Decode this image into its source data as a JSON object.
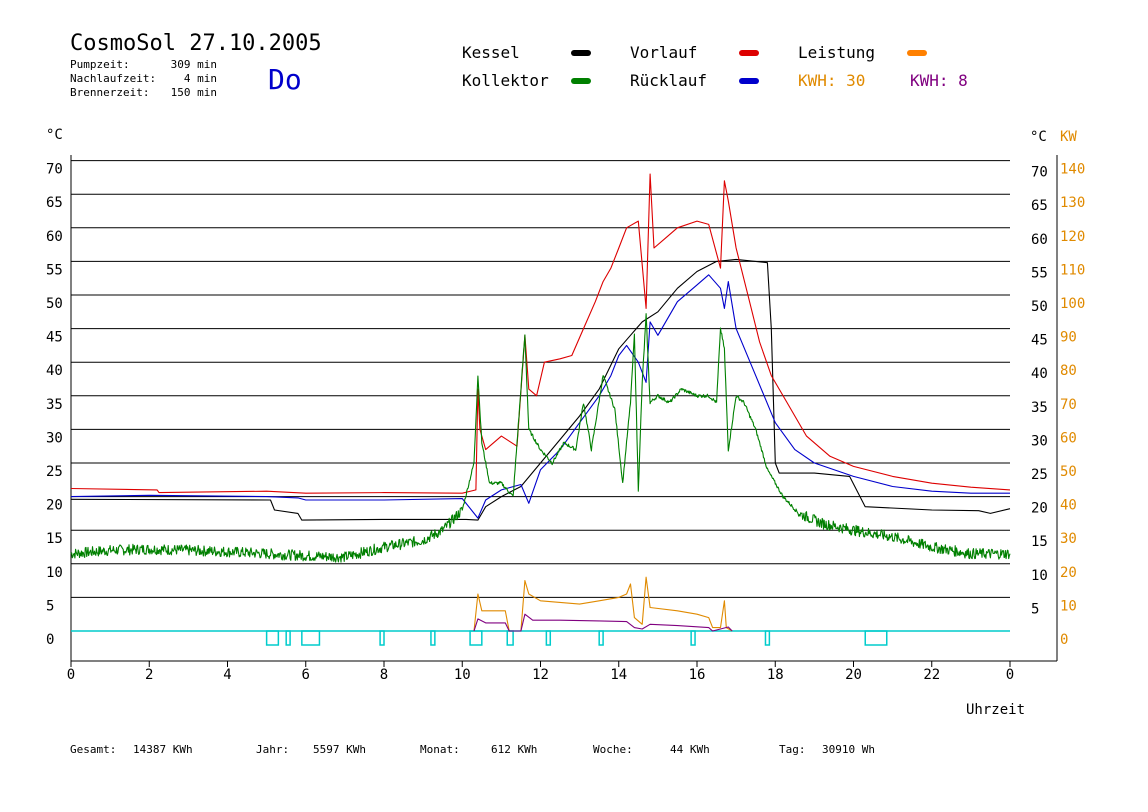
{
  "chart_data": {
    "type": "line",
    "title": "CosmoSol 27.10.2005",
    "day": "Do",
    "info": [
      {
        "label": "Pumpzeit:",
        "value": "309 min"
      },
      {
        "label": "Nachlaufzeit:",
        "value": "4 min"
      },
      {
        "label": "Brennerzeit:",
        "value": "150 min"
      }
    ],
    "legend": [
      {
        "name": "Kessel",
        "color": "#000000"
      },
      {
        "name": "Vorlauf",
        "color": "#dd0000"
      },
      {
        "name": "Leistung",
        "color": "#ff8000"
      },
      {
        "name": "Kollektor",
        "color": "#008000"
      },
      {
        "name": "Rücklauf",
        "color": "#0000cc"
      }
    ],
    "kwh_labels": [
      {
        "text": "KWH: 30",
        "color": "#e08a00"
      },
      {
        "text": "KWH: 8",
        "color": "#800080"
      }
    ],
    "xlabel": "Uhrzeit",
    "ylabel_left": "°C",
    "ylabel_right_temp": "°C",
    "ylabel_right_power": "KW",
    "xlim": [
      0,
      24
    ],
    "ylim": [
      0,
      70
    ],
    "x_ticks": [
      "0",
      "2",
      "4",
      "6",
      "8",
      "10",
      "12",
      "14",
      "16",
      "18",
      "20",
      "22",
      "0"
    ],
    "y_ticks_left": [
      "0",
      "5",
      "10",
      "15",
      "20",
      "25",
      "30",
      "35",
      "40",
      "45",
      "50",
      "55",
      "60",
      "65",
      "70"
    ],
    "y_ticks_right_temp": [
      "5",
      "10",
      "15",
      "20",
      "25",
      "30",
      "35",
      "40",
      "45",
      "50",
      "55",
      "60",
      "65",
      "70"
    ],
    "y_ticks_right_power": [
      "0",
      "10",
      "20",
      "30",
      "40",
      "50",
      "60",
      "70",
      "80",
      "90",
      "100",
      "110",
      "120",
      "130",
      "140"
    ],
    "series": [
      {
        "name": "Kessel",
        "color": "#000000",
        "points": [
          [
            0,
            19.6
          ],
          [
            5.1,
            19.5
          ],
          [
            5.2,
            18.0
          ],
          [
            5.8,
            17.5
          ],
          [
            5.9,
            16.5
          ],
          [
            8,
            16.6
          ],
          [
            10.1,
            16.6
          ],
          [
            10.4,
            16.5
          ],
          [
            10.6,
            18.5
          ],
          [
            11,
            20
          ],
          [
            11.5,
            21.5
          ],
          [
            12,
            25
          ],
          [
            12.5,
            28.5
          ],
          [
            13,
            32
          ],
          [
            13.5,
            36
          ],
          [
            14,
            42
          ],
          [
            14.3,
            44
          ],
          [
            14.6,
            46
          ],
          [
            15,
            47.5
          ],
          [
            15.5,
            51
          ],
          [
            16,
            53.5
          ],
          [
            16.5,
            55
          ],
          [
            17,
            55.3
          ],
          [
            17.5,
            55.0
          ],
          [
            17.8,
            54.8
          ],
          [
            17.9,
            45
          ],
          [
            18.0,
            25
          ],
          [
            18.1,
            23.5
          ],
          [
            19,
            23.5
          ],
          [
            19.9,
            23.0
          ],
          [
            20.3,
            18.5
          ],
          [
            22,
            18.0
          ],
          [
            23.2,
            17.9
          ],
          [
            23.5,
            17.5
          ],
          [
            24,
            18.2
          ]
        ]
      },
      {
        "name": "Vorlauf",
        "color": "#dd0000",
        "points": [
          [
            0,
            21.2
          ],
          [
            2.2,
            21.0
          ],
          [
            2.25,
            20.6
          ],
          [
            5,
            20.8
          ],
          [
            6,
            20.5
          ],
          [
            8,
            20.6
          ],
          [
            10,
            20.5
          ],
          [
            10.35,
            21
          ],
          [
            10.4,
            36
          ],
          [
            10.45,
            30
          ],
          [
            10.6,
            27
          ],
          [
            11,
            29
          ],
          [
            11.4,
            27.5
          ],
          [
            11.6,
            44
          ],
          [
            11.7,
            36
          ],
          [
            11.9,
            35
          ],
          [
            12.1,
            40
          ],
          [
            12.5,
            40.5
          ],
          [
            12.8,
            41
          ],
          [
            13.1,
            45
          ],
          [
            13.4,
            49
          ],
          [
            13.6,
            52
          ],
          [
            13.8,
            54
          ],
          [
            14.0,
            57
          ],
          [
            14.2,
            60
          ],
          [
            14.5,
            61
          ],
          [
            14.7,
            48
          ],
          [
            14.8,
            68
          ],
          [
            14.9,
            57
          ],
          [
            15.2,
            58.5
          ],
          [
            15.5,
            60
          ],
          [
            16,
            61
          ],
          [
            16.3,
            60.5
          ],
          [
            16.6,
            54
          ],
          [
            16.7,
            67
          ],
          [
            16.8,
            64
          ],
          [
            17,
            57
          ],
          [
            17.3,
            50
          ],
          [
            17.6,
            43
          ],
          [
            17.9,
            38
          ],
          [
            18.3,
            34
          ],
          [
            18.8,
            29
          ],
          [
            19.4,
            26
          ],
          [
            20,
            24.5
          ],
          [
            21,
            23.0
          ],
          [
            22,
            22.0
          ],
          [
            23,
            21.4
          ],
          [
            24,
            21.0
          ]
        ]
      },
      {
        "name": "Rücklauf",
        "color": "#0000cc",
        "points": [
          [
            0,
            20.0
          ],
          [
            2,
            20.2
          ],
          [
            5,
            20.0
          ],
          [
            5.8,
            19.8
          ],
          [
            6,
            19.5
          ],
          [
            8,
            19.5
          ],
          [
            10,
            19.7
          ],
          [
            10.4,
            16.8
          ],
          [
            10.6,
            19.5
          ],
          [
            11,
            21
          ],
          [
            11.5,
            21.8
          ],
          [
            11.7,
            19
          ],
          [
            12,
            24
          ],
          [
            12.5,
            27
          ],
          [
            13,
            31
          ],
          [
            13.5,
            35
          ],
          [
            13.8,
            38
          ],
          [
            14.0,
            41
          ],
          [
            14.2,
            42.5
          ],
          [
            14.5,
            40
          ],
          [
            14.7,
            37
          ],
          [
            14.8,
            46
          ],
          [
            15.0,
            44
          ],
          [
            15.5,
            49
          ],
          [
            16,
            51.5
          ],
          [
            16.3,
            53
          ],
          [
            16.6,
            51
          ],
          [
            16.7,
            48
          ],
          [
            16.8,
            52
          ],
          [
            17.0,
            45
          ],
          [
            17.5,
            38
          ],
          [
            18,
            31
          ],
          [
            18.5,
            27
          ],
          [
            19,
            25
          ],
          [
            20,
            23.0
          ],
          [
            21,
            21.5
          ],
          [
            22,
            20.8
          ],
          [
            23,
            20.5
          ],
          [
            24,
            20.5
          ]
        ]
      },
      {
        "name": "Kollektor",
        "color": "#008000",
        "points": [
          [
            0,
            11.5
          ],
          [
            1,
            12.0
          ],
          [
            2,
            12.2
          ],
          [
            3,
            12.0
          ],
          [
            4,
            11.8
          ],
          [
            5,
            11.5
          ],
          [
            6,
            11.2
          ],
          [
            7,
            11.0
          ],
          [
            8,
            12.5
          ],
          [
            9,
            13.5
          ],
          [
            9.5,
            15
          ],
          [
            10,
            18
          ],
          [
            10.3,
            25
          ],
          [
            10.4,
            38
          ],
          [
            10.5,
            28
          ],
          [
            10.7,
            22
          ],
          [
            11,
            22
          ],
          [
            11.3,
            20
          ],
          [
            11.6,
            44
          ],
          [
            11.7,
            30
          ],
          [
            12,
            27
          ],
          [
            12.3,
            25
          ],
          [
            12.6,
            28
          ],
          [
            12.9,
            27
          ],
          [
            13.1,
            34
          ],
          [
            13.3,
            27
          ],
          [
            13.6,
            38
          ],
          [
            13.9,
            33
          ],
          [
            14.1,
            22
          ],
          [
            14.3,
            34
          ],
          [
            14.4,
            44
          ],
          [
            14.5,
            21
          ],
          [
            14.6,
            37
          ],
          [
            14.7,
            47
          ],
          [
            14.8,
            34
          ],
          [
            15.0,
            35
          ],
          [
            15.3,
            34
          ],
          [
            15.6,
            36
          ],
          [
            16,
            35
          ],
          [
            16.3,
            35
          ],
          [
            16.5,
            34
          ],
          [
            16.6,
            45
          ],
          [
            16.7,
            42
          ],
          [
            16.8,
            27
          ],
          [
            17,
            35
          ],
          [
            17.2,
            34
          ],
          [
            17.5,
            30
          ],
          [
            17.8,
            24
          ],
          [
            18.2,
            20
          ],
          [
            18.6,
            17.5
          ],
          [
            19.2,
            16
          ],
          [
            20,
            15
          ],
          [
            21,
            14
          ],
          [
            22,
            12.5
          ],
          [
            23,
            11.5
          ],
          [
            24,
            11.5
          ]
        ]
      },
      {
        "name": "Leistung",
        "color": "#e08a00",
        "points": [
          [
            10.3,
            0
          ],
          [
            10.4,
            5.5
          ],
          [
            10.5,
            3.0
          ],
          [
            11.1,
            3.0
          ],
          [
            11.2,
            0
          ],
          [
            11.5,
            0
          ],
          [
            11.6,
            7.5
          ],
          [
            11.7,
            5.5
          ],
          [
            12,
            4.5
          ],
          [
            13,
            4.0
          ],
          [
            13.5,
            4.5
          ],
          [
            14.0,
            5.0
          ],
          [
            14.2,
            5.5
          ],
          [
            14.3,
            7.0
          ],
          [
            14.4,
            2.0
          ],
          [
            14.6,
            1.0
          ],
          [
            14.7,
            8.0
          ],
          [
            14.8,
            3.5
          ],
          [
            15.5,
            3.0
          ],
          [
            16.0,
            2.5
          ],
          [
            16.3,
            2.0
          ],
          [
            16.4,
            0.5
          ],
          [
            16.6,
            0.5
          ],
          [
            16.7,
            4.5
          ],
          [
            16.75,
            0.5
          ],
          [
            16.9,
            0
          ]
        ]
      },
      {
        "name": "Leistung 2",
        "color": "#800080",
        "points": [
          [
            10.3,
            0
          ],
          [
            10.4,
            1.8
          ],
          [
            10.6,
            1.2
          ],
          [
            11.1,
            1.2
          ],
          [
            11.2,
            0
          ],
          [
            11.5,
            0
          ],
          [
            11.6,
            2.5
          ],
          [
            11.8,
            1.6
          ],
          [
            12.5,
            1.6
          ],
          [
            13.5,
            1.5
          ],
          [
            14.2,
            1.4
          ],
          [
            14.4,
            0.5
          ],
          [
            14.6,
            0.3
          ],
          [
            14.8,
            1.0
          ],
          [
            15.5,
            0.8
          ],
          [
            16.3,
            0.5
          ],
          [
            16.4,
            0
          ],
          [
            16.8,
            0.6
          ],
          [
            16.9,
            0
          ]
        ]
      }
    ],
    "pump_segments": [
      [
        5.0,
        5.3
      ],
      [
        5.5,
        5.6
      ],
      [
        5.9,
        6.35
      ],
      [
        7.9,
        8.0
      ],
      [
        9.2,
        9.3
      ],
      [
        10.2,
        10.5
      ],
      [
        11.15,
        11.3
      ],
      [
        12.15,
        12.25
      ],
      [
        13.5,
        13.6
      ],
      [
        15.85,
        15.95
      ],
      [
        17.75,
        17.85
      ],
      [
        20.3,
        20.85
      ]
    ],
    "pump_color": "#00cccc",
    "grid": "horizontal",
    "legend_position": "top"
  },
  "footer": [
    {
      "label": "Gesamt:",
      "value": "14387 KWh"
    },
    {
      "label": "Jahr:",
      "value": "5597 KWh"
    },
    {
      "label": "Monat:",
      "value": "612 KWh"
    },
    {
      "label": "Woche:",
      "value": "44 KWh"
    },
    {
      "label": "Tag:",
      "value": "30910 Wh"
    }
  ]
}
